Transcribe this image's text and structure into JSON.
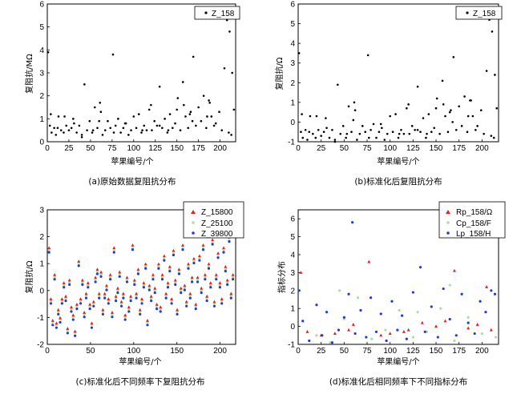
{
  "chart_data": [
    {
      "id": "a",
      "type": "scatter",
      "caption": "(a)原始数据复阻抗分布",
      "xlabel": "苹果编号/个",
      "ylabel": "复阻抗/MΩ",
      "xlim": [
        0,
        218
      ],
      "ylim": [
        0,
        6
      ],
      "xticks": [
        0,
        25,
        50,
        75,
        100,
        125,
        150,
        175,
        200
      ],
      "yticks": [
        0,
        1,
        2,
        3,
        4,
        5,
        6
      ],
      "legend_position": "top-right",
      "series": [
        {
          "name": "Z_158",
          "color": "#000000",
          "marker": "dot",
          "x": [
            1,
            3,
            5,
            8,
            10,
            13,
            16,
            19,
            22,
            25,
            28,
            31,
            34,
            37,
            40,
            43,
            46,
            49,
            52,
            55,
            58,
            61,
            64,
            67,
            70,
            73,
            76,
            77,
            79,
            82,
            85,
            88,
            91,
            94,
            97,
            100,
            103,
            106,
            109,
            112,
            115,
            118,
            121,
            124,
            127,
            130,
            133,
            136,
            139,
            142,
            145,
            148,
            151,
            154,
            157,
            160,
            163,
            166,
            169,
            172,
            175,
            178,
            181,
            184,
            187,
            190,
            193,
            196,
            199,
            202,
            205,
            208,
            211,
            214,
            4,
            12,
            20,
            30,
            40,
            53,
            62,
            90,
            120,
            140,
            150,
            168,
            188,
            195,
            210,
            213,
            216,
            158,
            165,
            185,
            60,
            110,
            130
          ],
          "y": [
            3.9,
            0.7,
            0.4,
            0.6,
            0.3,
            1.1,
            0.5,
            0.4,
            0.7,
            0.5,
            0.6,
            0.8,
            0.4,
            0.7,
            0.3,
            2.5,
            0.5,
            0.9,
            0.4,
            1.5,
            0.6,
            1.7,
            0.3,
            0.5,
            0.9,
            0.6,
            3.8,
            0.4,
            0.7,
            1.0,
            0.4,
            0.6,
            0.8,
            0.3,
            0.5,
            1.1,
            0.6,
            1.2,
            0.4,
            0.7,
            0.5,
            1.4,
            0.5,
            0.9,
            0.7,
            2.4,
            0.6,
            1.0,
            0.4,
            1.2,
            0.6,
            0.8,
            1.9,
            0.5,
            2.6,
            1.1,
            0.6,
            1.3,
            3.7,
            0.7,
            1.5,
            0.9,
            2.0,
            0.6,
            1.8,
            1.1,
            0.7,
            5.4,
            1.3,
            0.5,
            3.2,
            5.3,
            4.8,
            3.0,
            1.2,
            0.6,
            1.1,
            1.0,
            0.2,
            0.5,
            1.3,
            0.8,
            1.6,
            0.5,
            1.4,
            0.9,
            1.7,
            0.8,
            0.4,
            0.3,
            1.4,
            1.6,
            1.2,
            1.1,
            0.9,
            0.5,
            0.7
          ]
        }
      ]
    },
    {
      "id": "b",
      "type": "scatter",
      "caption": "(b)标准化后复阻抗分布",
      "xlabel": "苹果编号/个",
      "ylabel": "复阻抗/Ω",
      "xlim": [
        0,
        218
      ],
      "ylim": [
        -1,
        6
      ],
      "xticks": [
        0,
        25,
        50,
        75,
        100,
        125,
        150,
        175,
        200
      ],
      "yticks": [
        -1,
        0,
        1,
        2,
        3,
        4,
        5,
        6
      ],
      "legend_position": "top-right",
      "series": [
        {
          "name": "Z_158",
          "color": "#000000",
          "marker": "dot",
          "x": [
            1,
            3,
            5,
            8,
            10,
            13,
            16,
            19,
            22,
            25,
            28,
            31,
            34,
            37,
            40,
            43,
            46,
            49,
            52,
            55,
            58,
            61,
            64,
            67,
            70,
            73,
            76,
            77,
            79,
            82,
            85,
            88,
            91,
            94,
            97,
            100,
            103,
            106,
            109,
            112,
            115,
            118,
            121,
            124,
            127,
            130,
            133,
            136,
            139,
            142,
            145,
            148,
            151,
            154,
            157,
            160,
            163,
            166,
            169,
            172,
            175,
            178,
            181,
            184,
            187,
            190,
            193,
            196,
            199,
            202,
            205,
            208,
            211,
            214,
            4,
            12,
            20,
            30,
            40,
            53,
            62,
            90,
            120,
            140,
            150,
            168,
            188,
            195,
            210,
            213,
            216,
            158,
            165,
            185,
            60,
            110,
            130
          ],
          "y": [
            3.5,
            -0.5,
            -0.8,
            -0.4,
            -0.9,
            0.3,
            -0.6,
            -0.8,
            -0.4,
            -0.7,
            -0.5,
            -0.3,
            -0.8,
            -0.4,
            -0.9,
            1.9,
            -0.6,
            -0.2,
            -0.8,
            0.8,
            -0.5,
            1.0,
            -0.9,
            -0.6,
            -0.2,
            -0.5,
            3.4,
            -0.8,
            -0.4,
            -0.1,
            -0.8,
            -0.5,
            -0.3,
            -0.9,
            -0.6,
            0.3,
            -0.5,
            0.4,
            -0.8,
            -0.4,
            -0.6,
            0.7,
            -0.6,
            -0.2,
            -0.4,
            1.8,
            -0.5,
            0.2,
            -0.8,
            0.4,
            -0.5,
            -0.3,
            1.2,
            -0.6,
            2.1,
            0.3,
            -0.5,
            0.6,
            3.3,
            -0.4,
            0.8,
            -0.2,
            1.3,
            -0.5,
            1.1,
            0.3,
            -0.4,
            5.3,
            0.6,
            -0.6,
            2.6,
            5.2,
            4.6,
            2.4,
            0.4,
            -0.5,
            0.3,
            0.2,
            -1.0,
            -0.6,
            0.6,
            -0.1,
            0.9,
            -0.6,
            0.7,
            0.0,
            1.1,
            -0.2,
            -0.7,
            -0.8,
            0.7,
            0.9,
            0.5,
            0.3,
            0.1,
            -0.6,
            -0.4
          ]
        }
      ]
    },
    {
      "id": "c",
      "type": "scatter",
      "caption": "(c)标准化后不同频率下复阻抗分布",
      "xlabel": "苹果编号/个",
      "ylabel": "复阻抗/Ω",
      "xlim": [
        0,
        218
      ],
      "ylim": [
        -2,
        3
      ],
      "xticks": [
        0,
        50,
        100,
        150,
        200
      ],
      "yticks": [
        -2,
        -1,
        0,
        1,
        2,
        3
      ],
      "legend_position": "top-right",
      "series": [
        {
          "name": "Z_15800",
          "color": "#e8201d",
          "marker": "triangle"
        },
        {
          "name": "Z_25100",
          "color": "#a6e0a6",
          "marker": "dot"
        },
        {
          "name": "Z_39800",
          "color": "#1f3bd6",
          "marker": "dot"
        }
      ],
      "base_y": [
        1.5,
        -0.4,
        -1.2,
        0.5,
        -1.3,
        -0.8,
        -1.1,
        -0.4,
        0.2,
        -0.3,
        -1.5,
        0.3,
        -0.7,
        -1.0,
        -1.6,
        -0.6,
        1.0,
        -0.4,
        0.3,
        -0.9,
        -0.2,
        0.2,
        -0.6,
        -1.3,
        -0.5,
        0.4,
        0.7,
        -0.2,
        0.6,
        -0.8,
        -0.2,
        0.1,
        -0.4,
        0.5,
        -0.9,
        1.5,
        -0.3,
        0.0,
        0.6,
        -0.5,
        -0.2,
        -1.0,
        0.4,
        -0.7,
        -0.3,
        1.6,
        0.3,
        -0.2,
        0.7,
        -0.8,
        -0.4,
        0.2,
        0.9,
        -1.2,
        0.1,
        -0.3,
        0.5,
        0.0,
        -0.6,
        0.9,
        -0.7,
        0.5,
        1.2,
        -0.2,
        0.2,
        0.8,
        -0.4,
        1.4,
        0.3,
        -0.8,
        0.7,
        0.0,
        1.6,
        0.1,
        -0.5,
        0.9,
        -0.2,
        0.4,
        1.1,
        -0.6,
        0.4,
        1.2,
        0.0,
        1.6,
        0.5,
        -0.3,
        0.9,
        0.2,
        1.8,
        -0.5,
        0.5,
        1.3,
        0.2,
        -0.4,
        1.5,
        0.8,
        0.3,
        1.9,
        -0.2,
        0.5
      ]
    },
    {
      "id": "d",
      "type": "scatter",
      "caption": "(d)标准化后相同频率下不同指标分布",
      "xlabel": "苹果编号/个",
      "ylabel": "指标分布",
      "xlim": [
        0,
        218
      ],
      "ylim": [
        -1,
        6.5
      ],
      "xticks": [
        0,
        25,
        50,
        75,
        100,
        125,
        150,
        175,
        200
      ],
      "yticks": [
        -1,
        0,
        1,
        2,
        3,
        4,
        5,
        6
      ],
      "legend_position": "top-right",
      "series": [
        {
          "name": "Rp_158/Ω",
          "color": "#e8201d",
          "marker": "triangle",
          "x": [
            3,
            77,
            170,
            205,
            40,
            120,
            150,
            90,
            10,
            60,
            100,
            135,
            185,
            25,
            55,
            115,
            160,
            195,
            210
          ],
          "y": [
            3.0,
            3.6,
            3.1,
            2.2,
            -0.4,
            -0.2,
            0.0,
            -0.5,
            -0.3,
            0.1,
            -0.4,
            0.2,
            -0.1,
            -0.5,
            -0.2,
            -0.3,
            0.3,
            0.1,
            -0.2
          ]
        },
        {
          "name": "Cp_158/F",
          "color": "#a6e0a6",
          "marker": "dot",
          "x": [
            20,
            35,
            50,
            65,
            80,
            95,
            110,
            125,
            140,
            155,
            170,
            185,
            200,
            215,
            45,
            130,
            165
          ],
          "y": [
            -0.5,
            -0.9,
            0.4,
            1.6,
            -0.7,
            -0.2,
            0.9,
            -0.6,
            -0.3,
            1.0,
            -0.8,
            0.5,
            -0.4,
            -0.6,
            2.0,
            0.8,
            2.3
          ]
        },
        {
          "name": "Lp_158/H",
          "color": "#1f3bd6",
          "marker": "dot",
          "x": [
            1,
            5,
            12,
            20,
            26,
            31,
            37,
            44,
            50,
            55,
            59,
            62,
            68,
            74,
            79,
            85,
            90,
            96,
            102,
            108,
            113,
            118,
            125,
            133,
            138,
            145,
            152,
            158,
            165,
            172,
            178,
            185,
            192,
            198,
            204,
            210,
            214
          ],
          "y": [
            2.0,
            0.3,
            -0.8,
            1.2,
            -0.5,
            0.8,
            -0.9,
            -0.2,
            0.5,
            1.8,
            5.8,
            -0.4,
            0.9,
            -0.6,
            1.6,
            -0.3,
            0.7,
            -0.8,
            1.4,
            -0.2,
            0.6,
            -0.7,
            1.9,
            3.3,
            -0.3,
            1.1,
            -0.6,
            2.1,
            0.4,
            -0.5,
            1.8,
            0.2,
            -0.4,
            1.4,
            0.8,
            2.0,
            1.8
          ]
        }
      ]
    }
  ]
}
